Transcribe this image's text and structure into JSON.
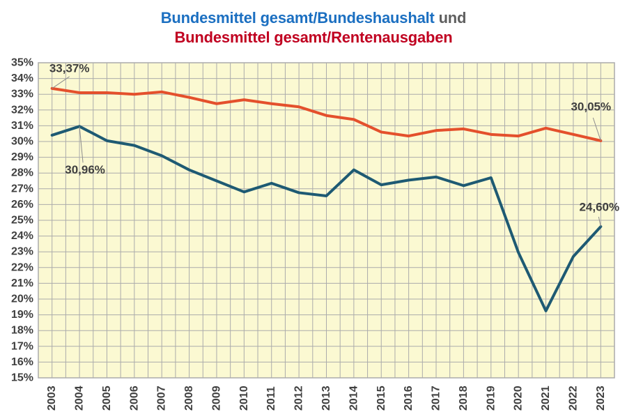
{
  "title": {
    "part1": "Bundesmittel gesamt/Bundeshaushalt",
    "connector": " und",
    "part2": "Bundesmittel gesamt/Rentenausgaben"
  },
  "colors": {
    "title_part1": "#1B6FC1",
    "title_connector": "#5F5F5F",
    "title_part2": "#C00020",
    "series_bundeshaushalt": "#1E5A73",
    "series_rentenausgaben": "#E4502C",
    "plot_background": "#FBF9D2",
    "gridline": "#ABABAB",
    "axis_text": "#3F3F3F",
    "annotation_text": "#3F3F3F",
    "leader_line": "#8C8C8C"
  },
  "chart_data": {
    "type": "line",
    "title": "Bundesmittel gesamt/Bundeshaushalt und Bundesmittel gesamt/Rentenausgaben",
    "xlabel": "",
    "ylabel": "",
    "ylim": [
      15,
      35
    ],
    "grid": true,
    "legend_position": "none (series identified by colored title lines)",
    "x": [
      2003,
      2004,
      2005,
      2006,
      2007,
      2008,
      2009,
      2010,
      2011,
      2012,
      2013,
      2014,
      2015,
      2016,
      2017,
      2018,
      2019,
      2020,
      2021,
      2022,
      2023
    ],
    "x_tick_labels": [
      "2003",
      "2004",
      "2005",
      "2006",
      "2007",
      "2008",
      "2009",
      "2010",
      "2011",
      "2012",
      "2013",
      "2014",
      "2015",
      "2016",
      "2017",
      "2018",
      "2019",
      "2020",
      "2021",
      "2022",
      "2023"
    ],
    "y_tick_labels": [
      "35%",
      "34%",
      "33%",
      "32%",
      "31%",
      "30%",
      "29%",
      "28%",
      "27%",
      "26%",
      "25%",
      "24%",
      "23%",
      "22%",
      "21%",
      "20%",
      "19%",
      "18%",
      "17%",
      "16%",
      "15%"
    ],
    "series": [
      {
        "name": "Bundesmittel gesamt/Bundeshaushalt",
        "color": "#1E5A73",
        "values": [
          30.4,
          30.96,
          30.05,
          29.75,
          29.1,
          28.2,
          27.5,
          26.8,
          27.35,
          26.75,
          26.55,
          28.2,
          27.25,
          27.55,
          27.75,
          27.2,
          27.7,
          22.95,
          19.25,
          22.7,
          24.6
        ]
      },
      {
        "name": "Bundesmittel gesamt/Rentenausgaben",
        "color": "#E4502C",
        "values": [
          33.37,
          33.1,
          33.1,
          33.0,
          33.15,
          32.8,
          32.4,
          32.65,
          32.4,
          32.2,
          31.65,
          31.4,
          30.6,
          30.35,
          30.7,
          30.8,
          30.45,
          30.35,
          30.85,
          30.45,
          30.05
        ]
      }
    ],
    "annotations": [
      {
        "text": "33,37%",
        "series": "Bundesmittel gesamt/Rentenausgaben",
        "year": 2003,
        "text_dx": 25,
        "text_dy": -29,
        "leader_dx": 25,
        "leader_dy": -17
      },
      {
        "text": "30,96%",
        "series": "Bundesmittel gesamt/Bundeshaushalt",
        "year": 2004,
        "text_dx": 8,
        "text_dy": 62,
        "leader_dx": 5,
        "leader_dy": 52
      },
      {
        "text": "30,05%",
        "series": "Bundesmittel gesamt/Rentenausgaben",
        "year": 2023,
        "text_dx": -14,
        "text_dy": -49,
        "leader_dx": -11,
        "leader_dy": -33
      },
      {
        "text": "24,60%",
        "series": "Bundesmittel gesamt/Bundeshaushalt",
        "year": 2023,
        "text_dx": -2,
        "text_dy": -28,
        "leader_dx": -3,
        "leader_dy": -14
      }
    ]
  }
}
